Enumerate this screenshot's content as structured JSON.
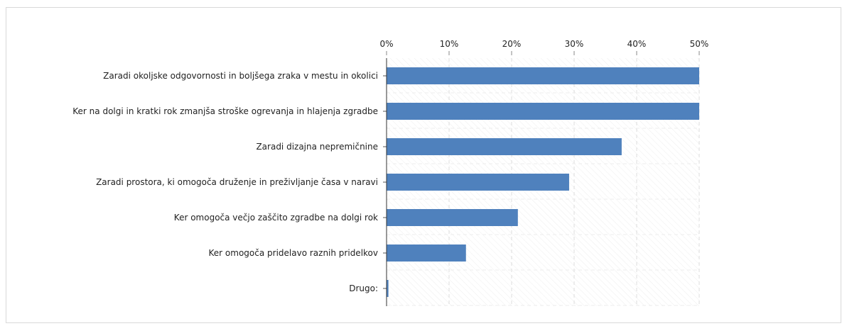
{
  "chart_data": {
    "type": "bar",
    "orientation": "horizontal",
    "categories": [
      "Zaradi okoljske odgovornosti in boljšega zraka v mestu in okolici",
      "Ker na dolgi in kratki rok zmanjša stroške ogrevanja in hlajenja zgradbe",
      "Zaradi dizajna nepremičnine",
      "Zaradi prostora, ki omogoča druženje in preživljanje časa v naravi",
      "Ker omogoča večjo zaščito zgradbe na dolgi rok",
      "Ker omogoča pridelavo raznih pridelkov",
      "Drugo:"
    ],
    "values": [
      50,
      50,
      37.6,
      29.2,
      21,
      12.7,
      0.3
    ],
    "color": "#4f81bd",
    "xlim": [
      0,
      50
    ],
    "xticks": [
      {
        "value": 0,
        "label": "0%"
      },
      {
        "value": 10,
        "label": "10%"
      },
      {
        "value": 20,
        "label": "20%"
      },
      {
        "value": 30,
        "label": "30%"
      },
      {
        "value": 40,
        "label": "40%"
      },
      {
        "value": 50,
        "label": "50%"
      }
    ],
    "grid": true
  }
}
